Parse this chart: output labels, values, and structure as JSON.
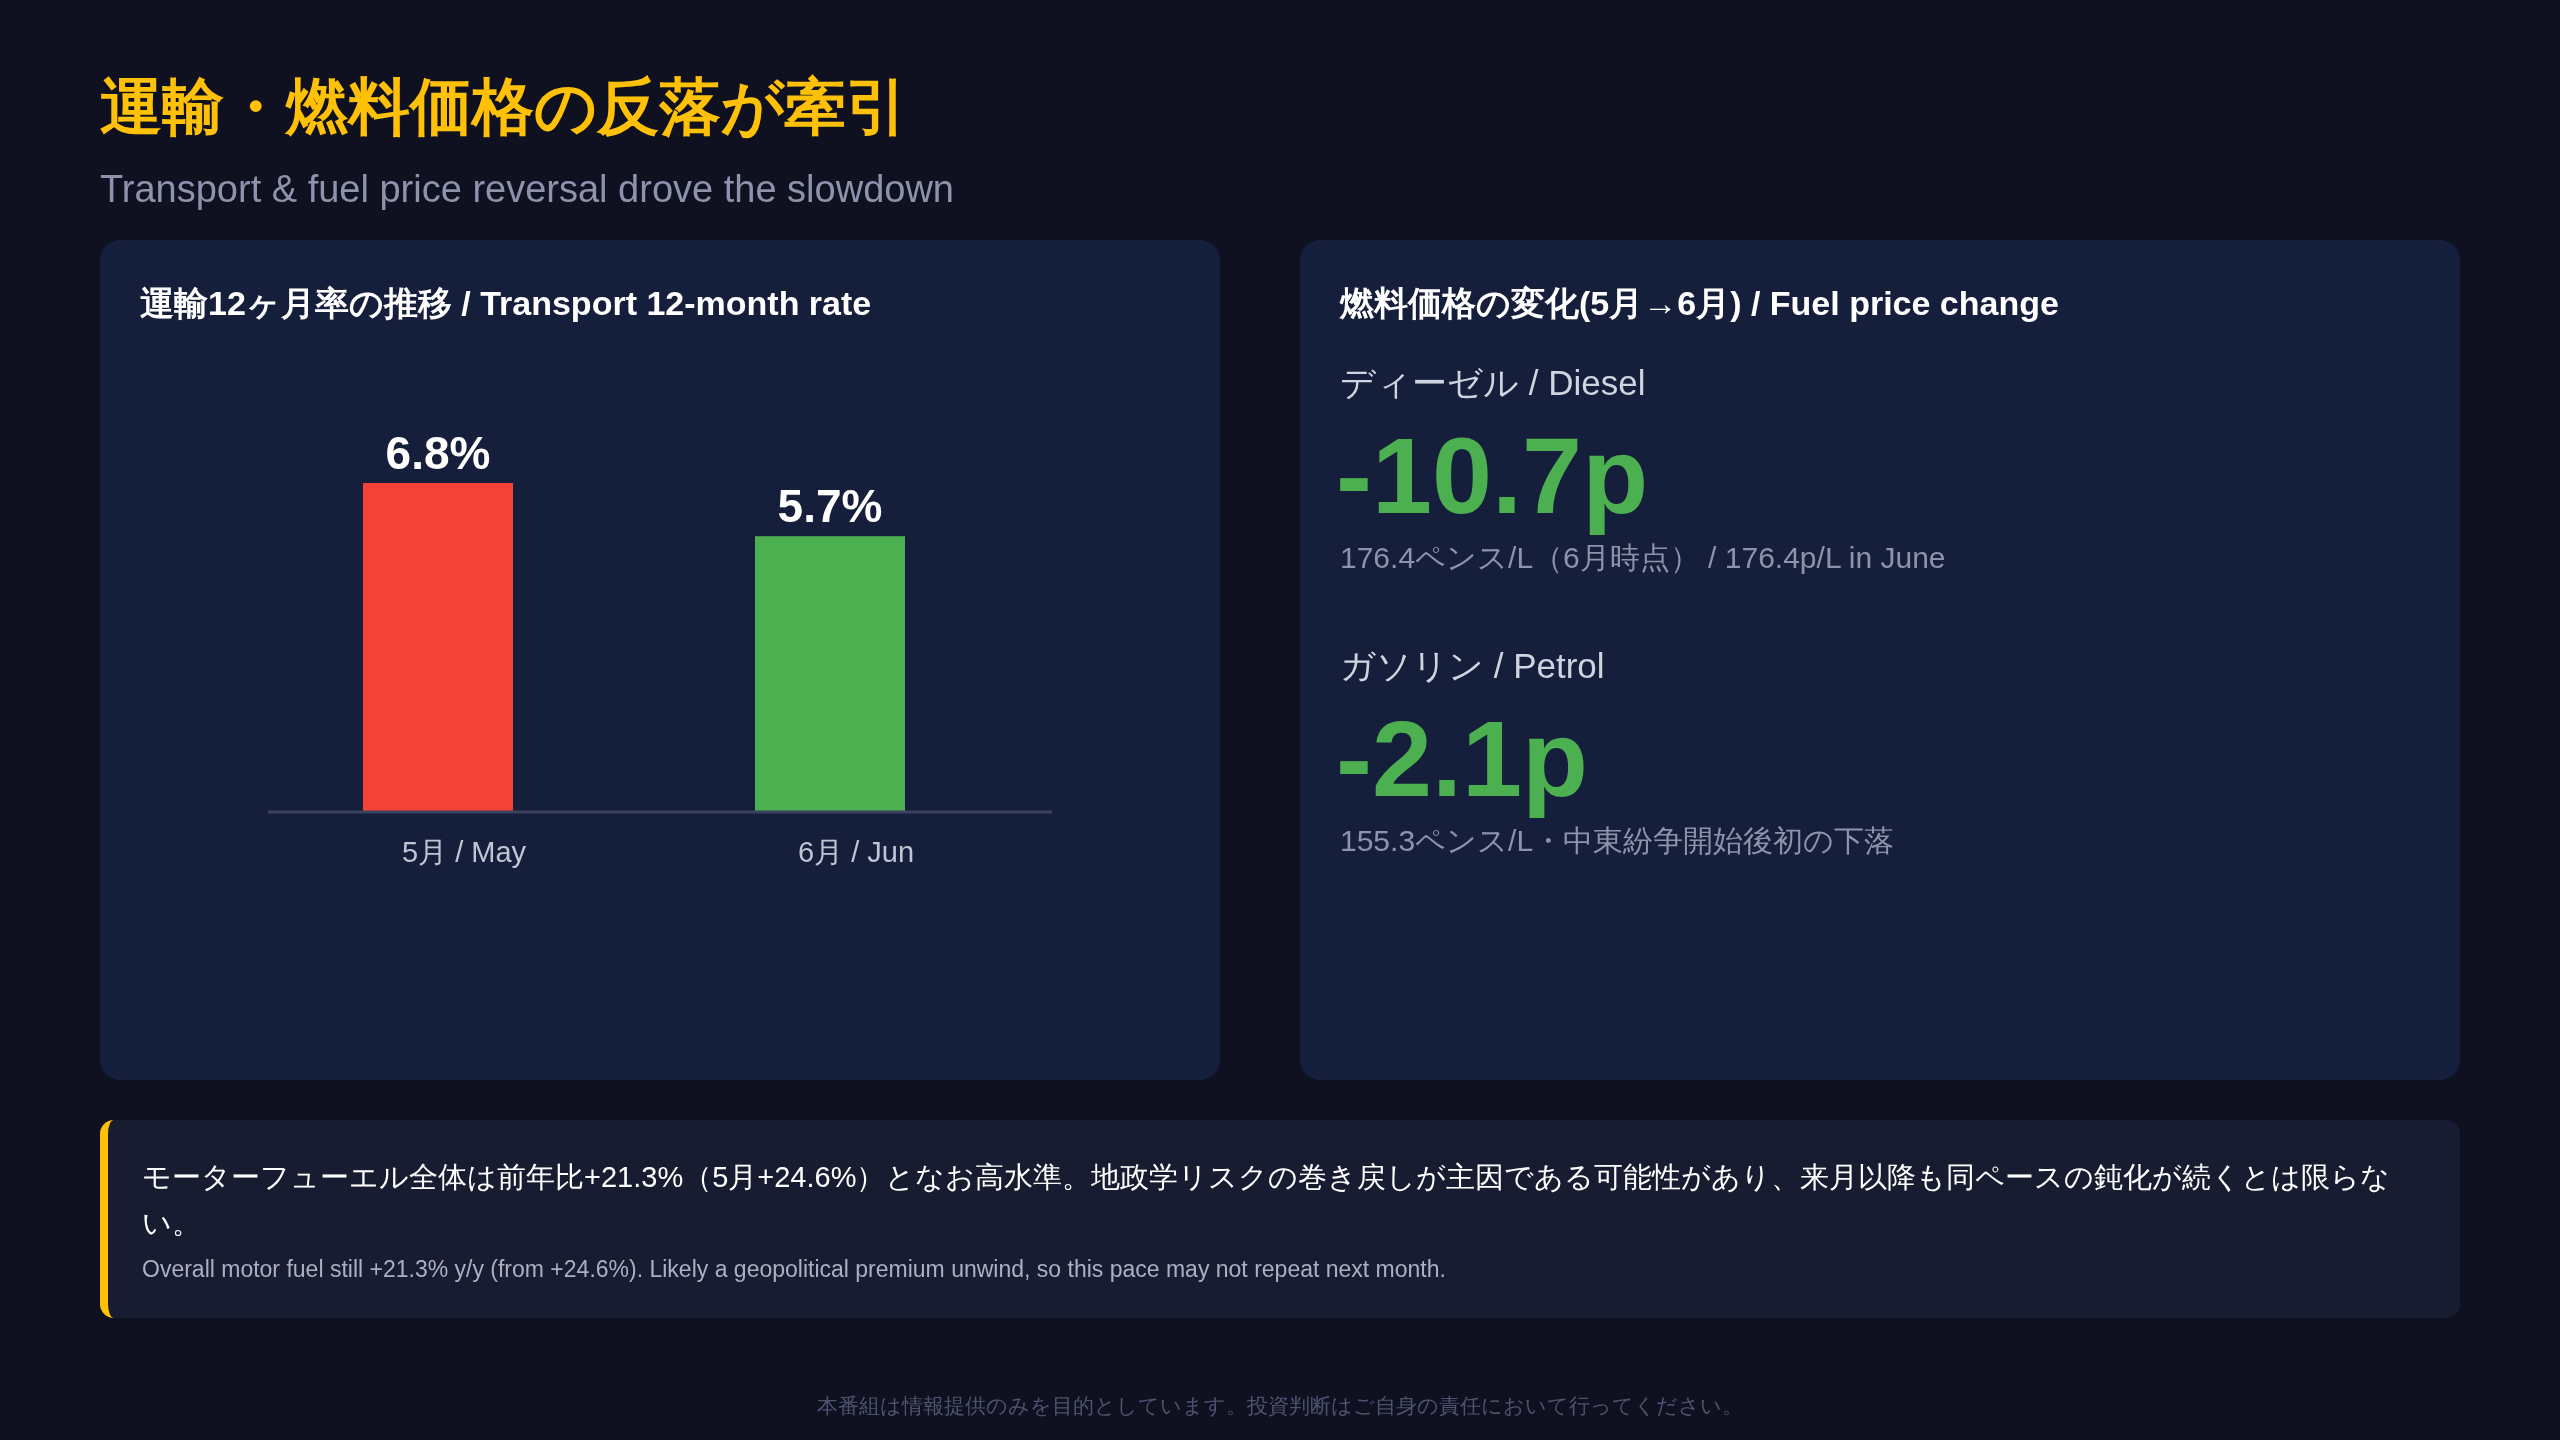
{
  "chart_data": [
    {
      "type": "other",
      "title": "運輸・燃料価格の反落が牽引",
      "subtitle": "Transport & fuel price reversal drove the slowdown"
    },
    {
      "type": "bar",
      "title": "運輸12ヶ月率の推移 / Transport 12-month rate",
      "categories": [
        "5月 / May",
        "6月 / Jun"
      ],
      "values": [
        6.8,
        5.7
      ],
      "colors": [
        "#f44336",
        "#4caf50"
      ],
      "value_labels": [
        "6.8%",
        "5.7%"
      ]
    },
    {
      "type": "other",
      "title": "燃料価格の変化(5月→6月) / Fuel price change",
      "annotations": [
        "ディーゼル / Diesel",
        "-10.7p",
        "176.4ペンス/L（6月時点） / 176.4p/L in June",
        "ガソリン / Petrol",
        "-2.1p",
        "155.3ペンス/L・中東紛争開始後初の下落"
      ]
    },
    {
      "type": "other",
      "annotations": [
        "モーターフューエル全体は前年比+21.3%（5月+24.6%）となお高水準。地政学リスクの巻き戻しが主因である可能性があり、来月以降も同ペースの鈍化が続くとは限らない。",
        "Overall motor fuel still +21.3% y/y (from +24.6%). Likely a geopolitical premium unwind, so this pace may not repeat next month.",
        "本番組は情報提供のみを目的としています。投資判断はご自身の責任において行ってください。"
      ]
    }
  ]
}
